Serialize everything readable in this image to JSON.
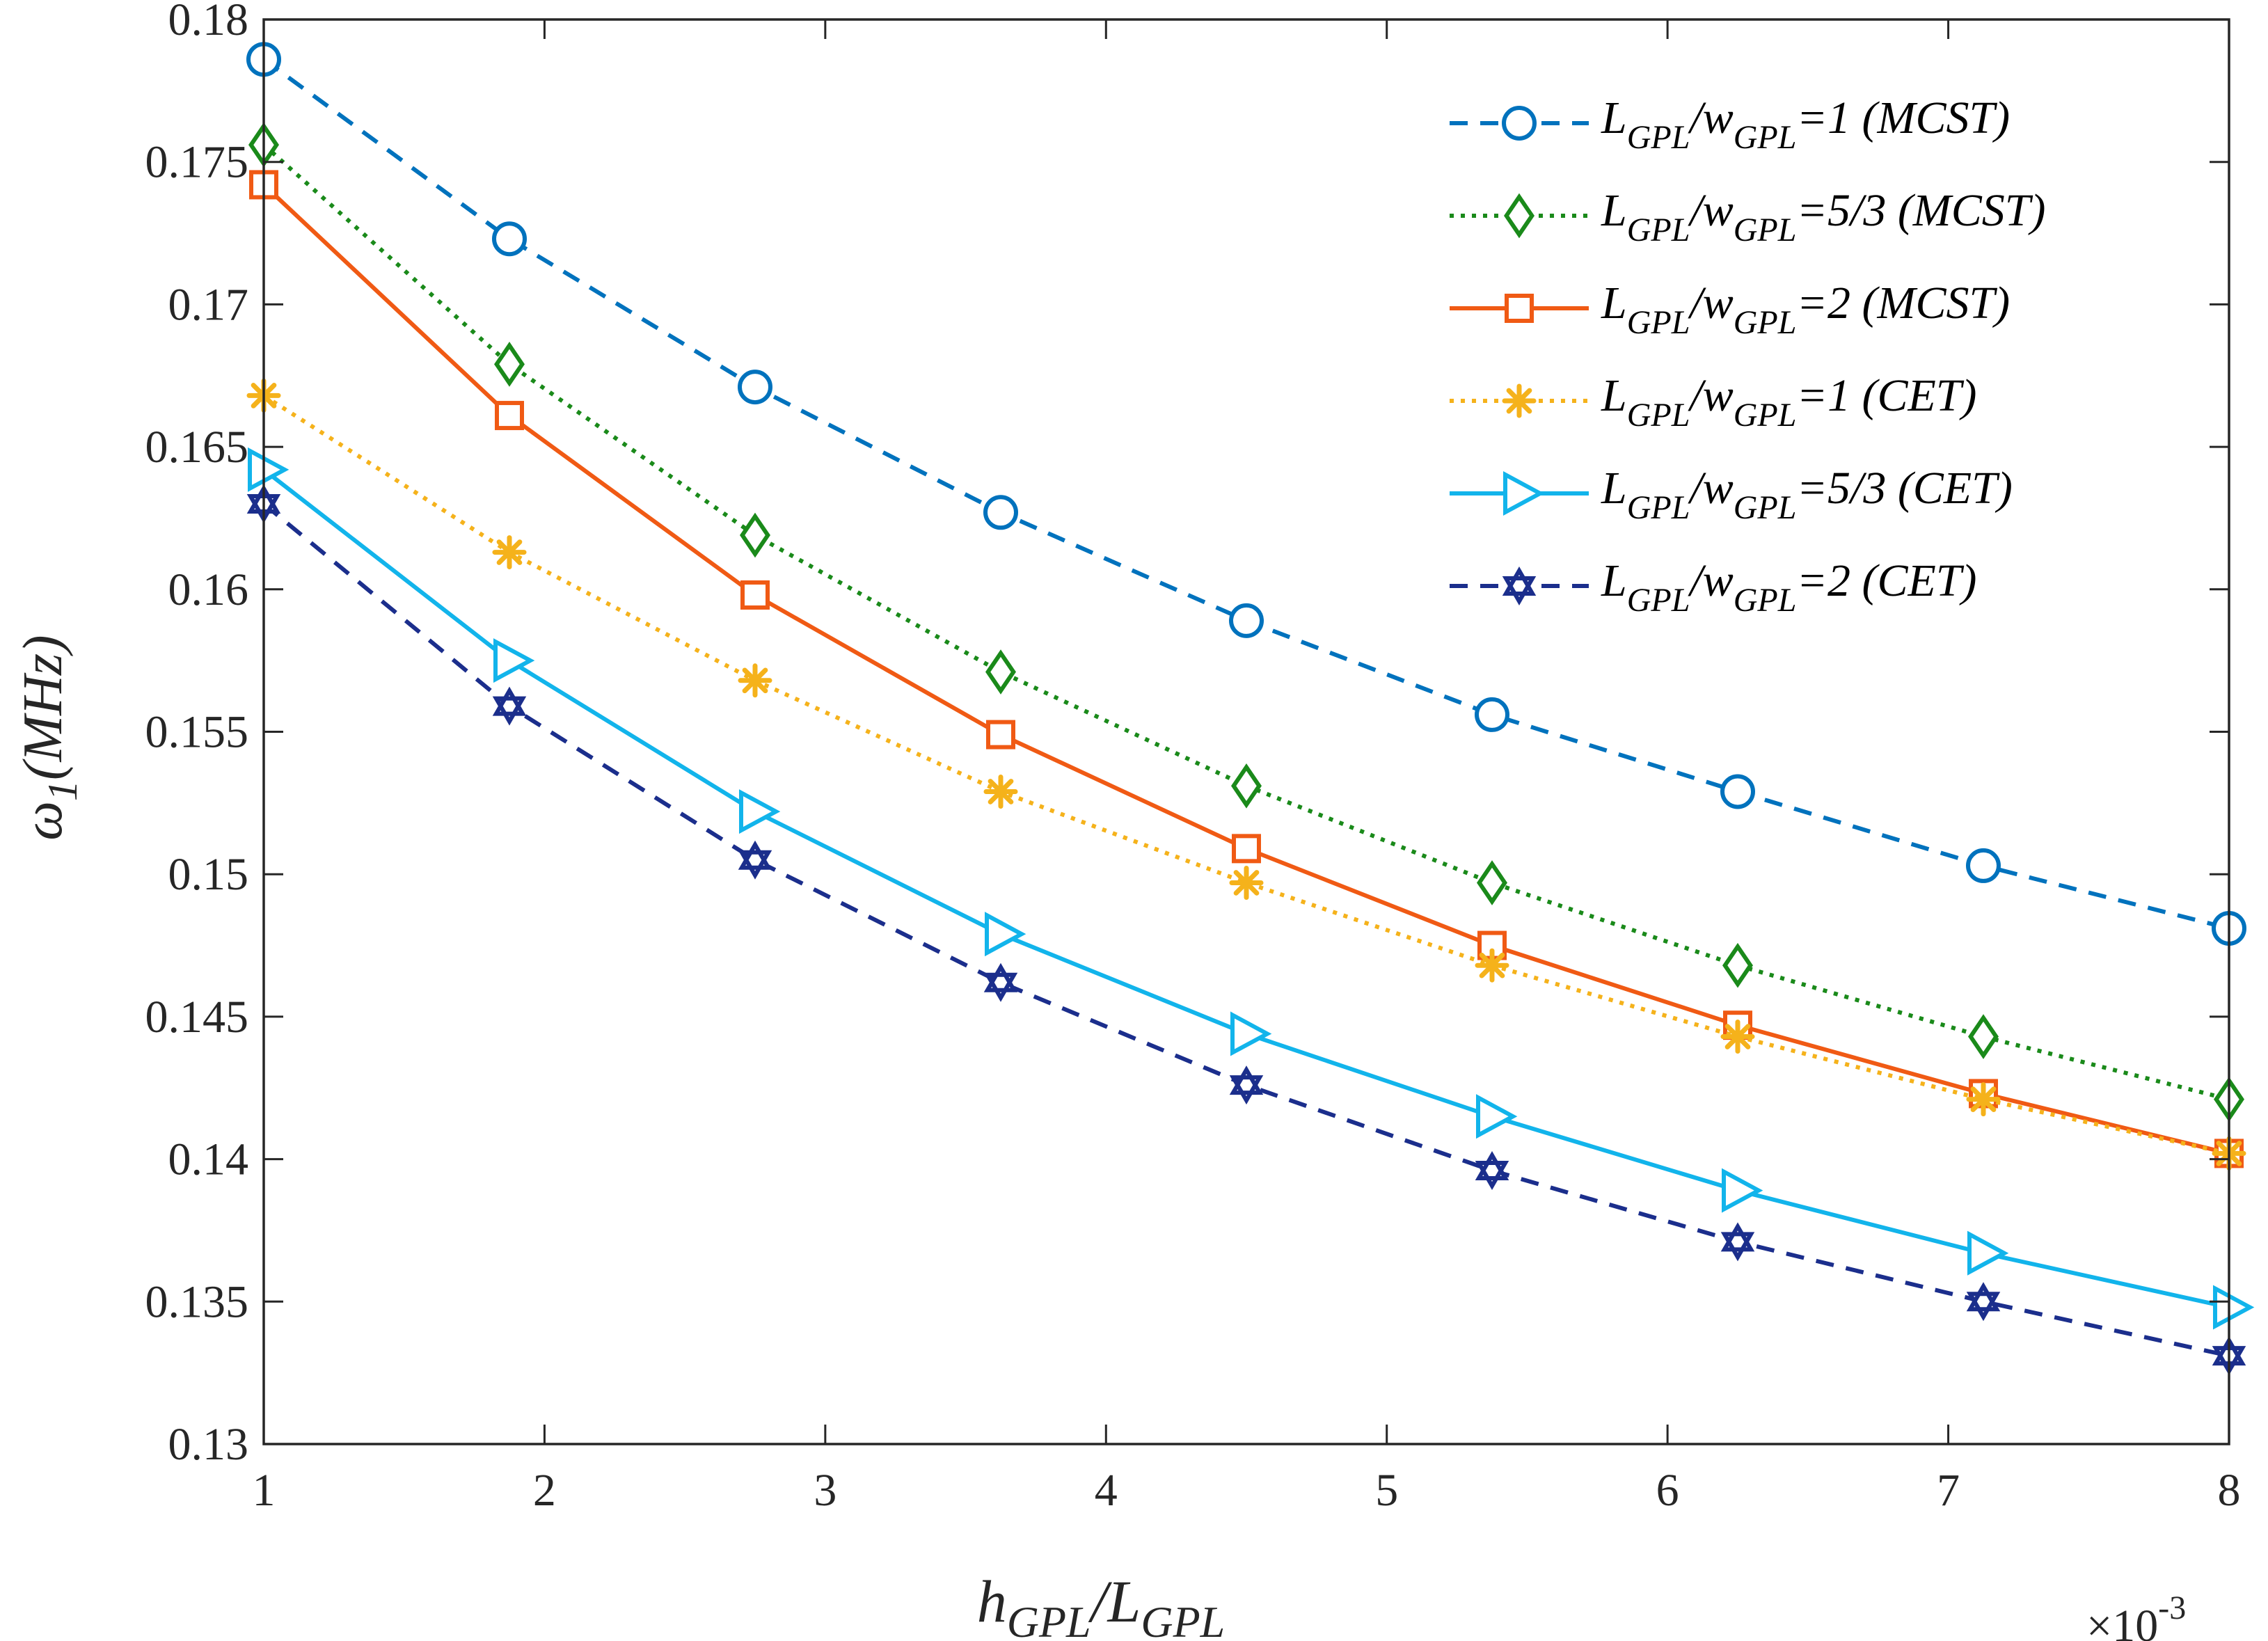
{
  "chart_data": {
    "type": "line",
    "title": "",
    "xlabel": {
      "h": "h",
      "h_sub": "GPL",
      "sep": "/L",
      "l_sub": "GPL"
    },
    "ylabel": {
      "omega": "ω",
      "sub": "1",
      "unit": "(MHz)"
    },
    "x_multiplier": {
      "base": "×10",
      "exponent": "-3"
    },
    "xlim": [
      1,
      8
    ],
    "ylim": [
      0.13,
      0.18
    ],
    "x_ticks": [
      1,
      2,
      3,
      4,
      5,
      6,
      7,
      8
    ],
    "x_tick_labels": [
      "1",
      "2",
      "3",
      "4",
      "5",
      "6",
      "7",
      "8"
    ],
    "y_ticks": [
      0.13,
      0.135,
      0.14,
      0.145,
      0.15,
      0.155,
      0.16,
      0.165,
      0.17,
      0.175,
      0.18
    ],
    "y_tick_labels": [
      "0.13",
      "0.135",
      "0.14",
      "0.145",
      "0.15",
      "0.155",
      "0.16",
      "0.165",
      "0.17",
      "0.175",
      "0.18"
    ],
    "grid": false,
    "legend_position": "top-right",
    "x": [
      1,
      1.875,
      2.75,
      3.625,
      4.5,
      5.375,
      6.25,
      7.125,
      8
    ],
    "series": [
      {
        "name": "LGPL/wGPL=1 (MCST)",
        "legend": {
          "sym": "L",
          "sub1": "GPL",
          "mid": "/w",
          "sub2": "GPL",
          "rest": "=1 (MCST)"
        },
        "color": "#0072BD",
        "line": "dashed",
        "marker": "circle",
        "values": [
          0.1786,
          0.1723,
          0.1671,
          0.1627,
          0.1589,
          0.1556,
          0.1529,
          0.1503,
          0.1481
        ]
      },
      {
        "name": "LGPL/wGPL=5/3 (MCST)",
        "legend": {
          "sym": "L",
          "sub1": "GPL",
          "mid": "/w",
          "sub2": "GPL",
          "rest": "=5/3 (MCST)"
        },
        "color": "#1A8A1A",
        "line": "dotted",
        "marker": "diamond",
        "values": [
          0.1756,
          0.1679,
          0.1619,
          0.1571,
          0.1531,
          0.1497,
          0.1468,
          0.1443,
          0.1421
        ]
      },
      {
        "name": "LGPL/wGPL=2 (MCST)",
        "legend": {
          "sym": "L",
          "sub1": "GPL",
          "mid": "/w",
          "sub2": "GPL",
          "rest": "=2 (MCST)"
        },
        "color": "#F05A14",
        "line": "solid",
        "marker": "square",
        "values": [
          0.1742,
          0.1661,
          0.1598,
          0.1549,
          0.1509,
          0.1475,
          0.1447,
          0.1423,
          0.1402
        ]
      },
      {
        "name": "LGPL/wGPL=1 (CET)",
        "legend": {
          "sym": "L",
          "sub1": "GPL",
          "mid": "/w",
          "sub2": "GPL",
          "rest": "=1 (CET)"
        },
        "color": "#F5B21B",
        "line": "dotted",
        "marker": "asterisk",
        "values": [
          0.1668,
          0.1613,
          0.1568,
          0.1529,
          0.1497,
          0.1468,
          0.1443,
          0.1421,
          0.1402
        ]
      },
      {
        "name": "LGPL/wGPL=5/3 (CET)",
        "legend": {
          "sym": "L",
          "sub1": "GPL",
          "mid": "/w",
          "sub2": "GPL",
          "rest": "=5/3 (CET)"
        },
        "color": "#12B4EB",
        "line": "solid",
        "marker": "triangle-right",
        "values": [
          0.1642,
          0.1575,
          0.1522,
          0.1479,
          0.1444,
          0.1415,
          0.1389,
          0.1367,
          0.1348
        ]
      },
      {
        "name": "LGPL/wGPL=2 (CET)",
        "legend": {
          "sym": "L",
          "sub1": "GPL",
          "mid": "/w",
          "sub2": "GPL",
          "rest": "=2 (CET)"
        },
        "color": "#1B2E8C",
        "line": "dashed",
        "marker": "hexagram",
        "values": [
          0.163,
          0.1559,
          0.1505,
          0.1462,
          0.1426,
          0.1396,
          0.1371,
          0.135,
          0.1331
        ]
      }
    ]
  }
}
